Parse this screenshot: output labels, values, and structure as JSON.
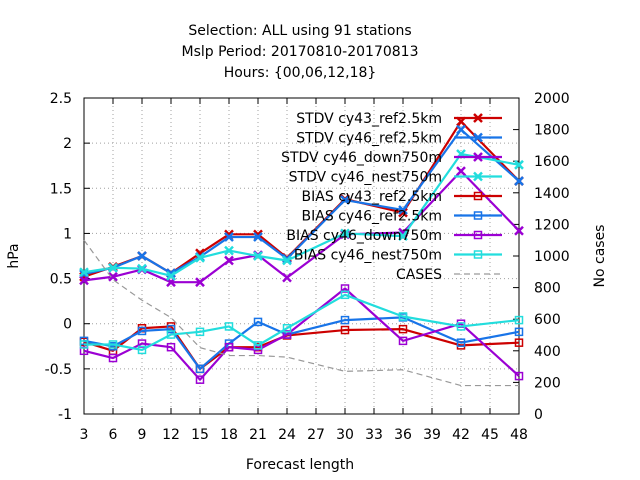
{
  "chart_data": {
    "type": "line",
    "title_lines": [
      "Selection: ALL using    91 stations",
      "Mslp   Period: 20170810-20170813",
      "Hours: {00,06,12,18}"
    ],
    "xlabel": "Forecast length",
    "ylabel": "hPa",
    "y2label": "No cases",
    "x_ticks": [
      3,
      6,
      9,
      12,
      15,
      18,
      21,
      24,
      27,
      30,
      33,
      36,
      39,
      42,
      45,
      48
    ],
    "y_ticks": [
      -1,
      -0.5,
      0,
      0.5,
      1,
      1.5,
      2,
      2.5
    ],
    "y2_ticks": [
      0,
      200,
      400,
      600,
      800,
      1000,
      1200,
      1400,
      1600,
      1800,
      2000
    ],
    "ylim": [
      -1,
      2.5
    ],
    "y2lim": [
      0,
      2000
    ],
    "xlim": [
      3,
      48
    ],
    "grid": true,
    "legend_position": "top-right",
    "series": [
      {
        "name": "STDV cy43_ref2.5km",
        "color": "#cc0000",
        "marker": "x",
        "axis": "y1",
        "x": [
          3,
          6,
          9,
          12,
          15,
          18,
          21,
          24,
          30,
          36,
          42,
          48
        ],
        "y": [
          0.52,
          0.63,
          0.75,
          0.56,
          0.78,
          0.99,
          0.99,
          0.73,
          1.38,
          1.23,
          2.24,
          1.58
        ]
      },
      {
        "name": "STDV cy46_ref2.5km",
        "color": "#1874e8",
        "marker": "x",
        "axis": "y1",
        "x": [
          3,
          6,
          9,
          12,
          15,
          18,
          21,
          24,
          30,
          36,
          42,
          48
        ],
        "y": [
          0.55,
          0.62,
          0.75,
          0.56,
          0.74,
          0.96,
          0.96,
          0.72,
          1.37,
          1.26,
          2.15,
          1.58
        ]
      },
      {
        "name": "STDV cy46_down750m",
        "color": "#9b00d3",
        "marker": "x",
        "axis": "y1",
        "x": [
          3,
          6,
          9,
          12,
          15,
          18,
          21,
          24,
          30,
          36,
          42,
          48
        ],
        "y": [
          0.48,
          0.52,
          0.6,
          0.46,
          0.46,
          0.7,
          0.76,
          0.51,
          0.99,
          1.01,
          1.69,
          1.03
        ]
      },
      {
        "name": "STDV cy46_nest750m",
        "color": "#22dddd",
        "marker": "x",
        "axis": "y1",
        "x": [
          3,
          6,
          9,
          12,
          15,
          18,
          21,
          24,
          30,
          36,
          42,
          48
        ],
        "y": [
          0.57,
          0.62,
          0.61,
          0.53,
          0.73,
          0.81,
          0.75,
          0.7,
          1.0,
          0.97,
          1.88,
          1.76
        ]
      },
      {
        "name": "BIAS cy43_ref2.5km",
        "color": "#cc0000",
        "marker": "square",
        "axis": "y1",
        "x": [
          3,
          6,
          9,
          12,
          15,
          18,
          21,
          24,
          30,
          36,
          42,
          48
        ],
        "y": [
          -0.2,
          -0.3,
          -0.05,
          -0.03,
          -0.5,
          -0.26,
          -0.26,
          -0.13,
          -0.07,
          -0.06,
          -0.24,
          -0.21
        ]
      },
      {
        "name": "BIAS cy46_ref2.5km",
        "color": "#1874e8",
        "marker": "square",
        "axis": "y1",
        "x": [
          3,
          6,
          9,
          12,
          15,
          18,
          21,
          24,
          30,
          36,
          42,
          48
        ],
        "y": [
          -0.19,
          -0.25,
          -0.08,
          -0.06,
          -0.5,
          -0.22,
          0.02,
          -0.12,
          0.04,
          0.07,
          -0.21,
          -0.09
        ]
      },
      {
        "name": "BIAS cy46_down750m",
        "color": "#9b00d3",
        "marker": "square",
        "axis": "y1",
        "x": [
          3,
          6,
          9,
          12,
          15,
          18,
          21,
          24,
          30,
          36,
          42,
          48
        ],
        "y": [
          -0.3,
          -0.38,
          -0.22,
          -0.26,
          -0.62,
          -0.26,
          -0.29,
          -0.12,
          0.39,
          -0.19,
          0.0,
          -0.58
        ]
      },
      {
        "name": "BIAS cy46_nest750m",
        "color": "#22dddd",
        "marker": "square",
        "axis": "y1",
        "x": [
          3,
          6,
          9,
          12,
          15,
          18,
          21,
          24,
          30,
          36,
          42,
          48
        ],
        "y": [
          -0.23,
          -0.23,
          -0.29,
          -0.12,
          -0.09,
          -0.03,
          -0.24,
          -0.05,
          0.32,
          0.08,
          -0.03,
          0.04
        ]
      },
      {
        "name": "CASES",
        "color": "#999999",
        "marker": "none",
        "dashed": true,
        "axis": "y2",
        "x": [
          3,
          6,
          9,
          12,
          15,
          18,
          21,
          24,
          30,
          36,
          42,
          48
        ],
        "y": [
          1100,
          850,
          720,
          610,
          420,
          370,
          370,
          360,
          270,
          280,
          180,
          180
        ]
      }
    ]
  }
}
